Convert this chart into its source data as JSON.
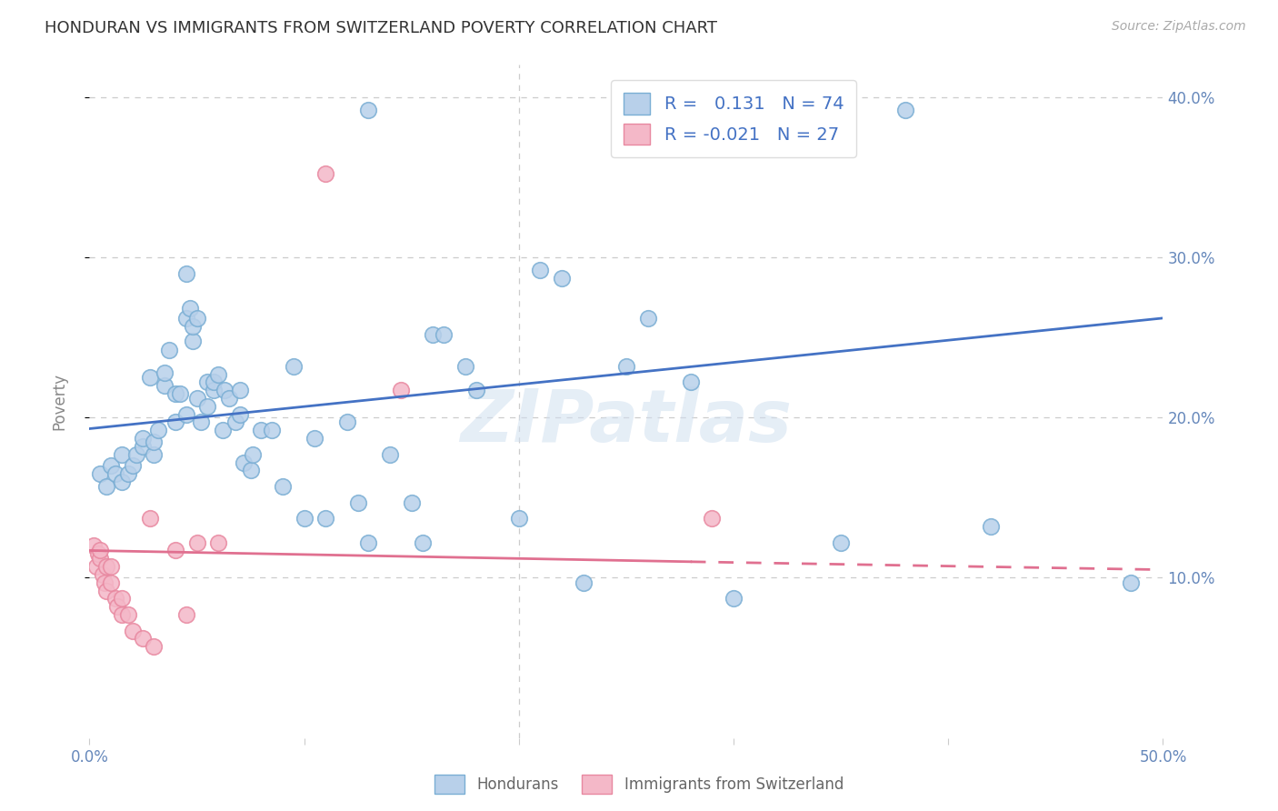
{
  "title": "HONDURAN VS IMMIGRANTS FROM SWITZERLAND POVERTY CORRELATION CHART",
  "source": "Source: ZipAtlas.com",
  "ylabel": "Poverty",
  "watermark": "ZIPatlas",
  "xlim": [
    0.0,
    0.5
  ],
  "ylim": [
    0.0,
    0.42
  ],
  "xticks": [
    0.0,
    0.1,
    0.2,
    0.3,
    0.4,
    0.5
  ],
  "yticks": [
    0.1,
    0.2,
    0.3,
    0.4
  ],
  "legend_blue_r": "0.131",
  "legend_blue_n": "74",
  "legend_pink_r": "-0.021",
  "legend_pink_n": "27",
  "legend_label1": "Hondurans",
  "legend_label2": "Immigrants from Switzerland",
  "blue_fill": "#b8d0ea",
  "pink_fill": "#f4b8c8",
  "blue_edge": "#7aaed4",
  "pink_edge": "#e888a0",
  "blue_line_color": "#4472c4",
  "pink_line_color": "#e07090",
  "blue_scatter": [
    [
      0.005,
      0.165
    ],
    [
      0.008,
      0.157
    ],
    [
      0.01,
      0.17
    ],
    [
      0.012,
      0.165
    ],
    [
      0.015,
      0.16
    ],
    [
      0.015,
      0.177
    ],
    [
      0.018,
      0.165
    ],
    [
      0.02,
      0.17
    ],
    [
      0.022,
      0.177
    ],
    [
      0.025,
      0.182
    ],
    [
      0.025,
      0.187
    ],
    [
      0.028,
      0.225
    ],
    [
      0.03,
      0.177
    ],
    [
      0.03,
      0.185
    ],
    [
      0.032,
      0.192
    ],
    [
      0.035,
      0.22
    ],
    [
      0.035,
      0.228
    ],
    [
      0.037,
      0.242
    ],
    [
      0.04,
      0.197
    ],
    [
      0.04,
      0.215
    ],
    [
      0.042,
      0.215
    ],
    [
      0.045,
      0.202
    ],
    [
      0.045,
      0.262
    ],
    [
      0.045,
      0.29
    ],
    [
      0.047,
      0.268
    ],
    [
      0.048,
      0.248
    ],
    [
      0.048,
      0.257
    ],
    [
      0.05,
      0.212
    ],
    [
      0.05,
      0.262
    ],
    [
      0.052,
      0.197
    ],
    [
      0.055,
      0.207
    ],
    [
      0.055,
      0.222
    ],
    [
      0.058,
      0.217
    ],
    [
      0.058,
      0.222
    ],
    [
      0.06,
      0.227
    ],
    [
      0.062,
      0.192
    ],
    [
      0.063,
      0.217
    ],
    [
      0.065,
      0.212
    ],
    [
      0.068,
      0.197
    ],
    [
      0.07,
      0.202
    ],
    [
      0.07,
      0.217
    ],
    [
      0.072,
      0.172
    ],
    [
      0.075,
      0.167
    ],
    [
      0.076,
      0.177
    ],
    [
      0.08,
      0.192
    ],
    [
      0.085,
      0.192
    ],
    [
      0.09,
      0.157
    ],
    [
      0.095,
      0.232
    ],
    [
      0.1,
      0.137
    ],
    [
      0.105,
      0.187
    ],
    [
      0.11,
      0.137
    ],
    [
      0.12,
      0.197
    ],
    [
      0.125,
      0.147
    ],
    [
      0.13,
      0.122
    ],
    [
      0.14,
      0.177
    ],
    [
      0.15,
      0.147
    ],
    [
      0.155,
      0.122
    ],
    [
      0.16,
      0.252
    ],
    [
      0.165,
      0.252
    ],
    [
      0.175,
      0.232
    ],
    [
      0.18,
      0.217
    ],
    [
      0.2,
      0.137
    ],
    [
      0.21,
      0.292
    ],
    [
      0.22,
      0.287
    ],
    [
      0.23,
      0.097
    ],
    [
      0.25,
      0.232
    ],
    [
      0.26,
      0.262
    ],
    [
      0.28,
      0.222
    ],
    [
      0.3,
      0.087
    ],
    [
      0.35,
      0.122
    ],
    [
      0.38,
      0.392
    ],
    [
      0.42,
      0.132
    ],
    [
      0.485,
      0.097
    ],
    [
      0.13,
      0.392
    ]
  ],
  "pink_scatter": [
    [
      0.002,
      0.12
    ],
    [
      0.003,
      0.107
    ],
    [
      0.004,
      0.115
    ],
    [
      0.005,
      0.112
    ],
    [
      0.005,
      0.117
    ],
    [
      0.006,
      0.102
    ],
    [
      0.007,
      0.097
    ],
    [
      0.008,
      0.092
    ],
    [
      0.008,
      0.107
    ],
    [
      0.01,
      0.097
    ],
    [
      0.01,
      0.107
    ],
    [
      0.012,
      0.087
    ],
    [
      0.013,
      0.082
    ],
    [
      0.015,
      0.077
    ],
    [
      0.015,
      0.087
    ],
    [
      0.018,
      0.077
    ],
    [
      0.02,
      0.067
    ],
    [
      0.025,
      0.062
    ],
    [
      0.028,
      0.137
    ],
    [
      0.03,
      0.057
    ],
    [
      0.04,
      0.117
    ],
    [
      0.045,
      0.077
    ],
    [
      0.05,
      0.122
    ],
    [
      0.06,
      0.122
    ],
    [
      0.145,
      0.217
    ],
    [
      0.29,
      0.137
    ],
    [
      0.11,
      0.352
    ]
  ],
  "blue_trendline": [
    [
      0.0,
      0.193
    ],
    [
      0.5,
      0.262
    ]
  ],
  "pink_trendline_solid": [
    [
      0.0,
      0.117
    ],
    [
      0.28,
      0.11
    ]
  ],
  "pink_trendline_dashed": [
    [
      0.28,
      0.11
    ],
    [
      0.5,
      0.105
    ]
  ],
  "background_color": "#ffffff",
  "grid_color": "#cccccc",
  "title_fontsize": 13,
  "tick_label_color": "#6688bb",
  "ylabel_color": "#888888"
}
